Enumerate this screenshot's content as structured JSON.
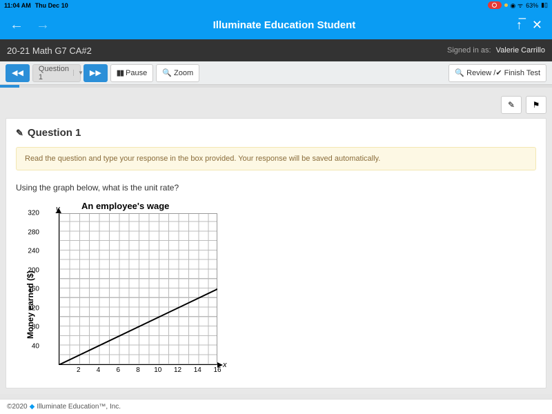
{
  "status": {
    "time": "11:04 AM",
    "date": "Thu Dec 10",
    "battery": "63%"
  },
  "header": {
    "title": "Illuminate Education Student"
  },
  "assessment": {
    "name": "20-21 Math G7 CA#2",
    "signed_in_label": "Signed in as:",
    "signed_in_user": "Valerie Carrillo"
  },
  "toolbar": {
    "question_selector": "Question 1",
    "pause": "Pause",
    "zoom": "Zoom",
    "review_finish": "Review / ",
    "finish": "Finish Test"
  },
  "question": {
    "heading": "Question 1",
    "notice": "Read the question and type your response in the box provided. Your response will be saved automatically.",
    "prompt": "Using the graph below, what is the unit rate?"
  },
  "chart": {
    "title": "An employee's wage",
    "y_axis_label": "Money earned ($)",
    "y_letter": "y",
    "x_letter": "x",
    "x_max": 16,
    "y_max": 320,
    "x_ticks": [
      2,
      4,
      6,
      8,
      10,
      12,
      14,
      16
    ],
    "y_ticks": [
      40,
      80,
      120,
      160,
      200,
      240,
      280,
      320
    ],
    "line": {
      "x1": 0,
      "y1": 0,
      "x2": 16.5,
      "y2": 165
    },
    "grid_color": "#bbbbbb",
    "line_color": "#000000",
    "background": "#ffffff"
  },
  "footer": {
    "copyright": "©2020",
    "company": "Illuminate Education™, Inc."
  }
}
